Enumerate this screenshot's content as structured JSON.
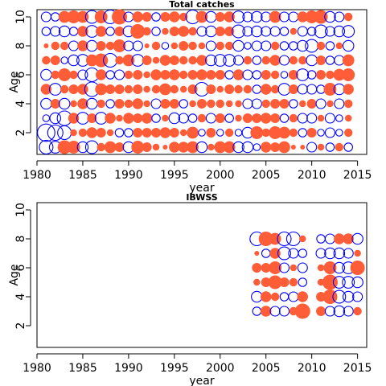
{
  "chart_data": [
    {
      "type": "scatter",
      "subtype": "bubble residual plot",
      "title": "Total catches",
      "xlabel": "year",
      "ylabel": "Age",
      "xlim": [
        1980,
        2016
      ],
      "ylim": [
        0.5,
        10.5
      ],
      "xticks": [
        1980,
        1985,
        1990,
        1995,
        2000,
        2005,
        2010,
        2015
      ],
      "yticks": [
        2,
        4,
        6,
        8,
        10
      ],
      "colors": {
        "positive": "#ff5c38",
        "negative": "#0000ff"
      },
      "year_start": 1981,
      "year_end": 2014,
      "age_start": 1,
      "age_end": 10,
      "residuals": [
        [
          -0.8,
          -0.6,
          0.8,
          0.7,
          -0.5,
          -0.7,
          0.3,
          0.6,
          0.4,
          -0.5,
          0.7,
          0.4,
          0.2,
          0.1,
          0.5,
          0.5,
          0.6,
          -0.5,
          0.2,
          0.6,
          0.6,
          -0.5,
          -0.5,
          -0.2,
          0.5,
          0.4,
          0.6,
          0.1,
          0.1,
          -0.4,
          0.2,
          -0.3,
          0.3,
          -0.3
        ],
        [
          -1.3,
          -1.0,
          -0.8,
          0.2,
          0.3,
          0.5,
          0.4,
          0.2,
          -0.3,
          -0.3,
          0.4,
          0.4,
          0.4,
          0.5,
          0.4,
          0.2,
          0.6,
          -0.2,
          0.4,
          -0.2,
          0.3,
          -0.2,
          -0.5,
          0.7,
          0.3,
          0.7,
          0.6,
          0.3,
          -0.3,
          0.4,
          -0.2,
          -0.4,
          -0.2,
          0.3
        ],
        [
          -0.2,
          -0.5,
          -0.9,
          0.5,
          -0.6,
          0.4,
          -0.6,
          0.5,
          0.2,
          0.5,
          0.4,
          0.5,
          -0.3,
          0.2,
          -0.5,
          -0.4,
          -0.3,
          0.3,
          -0.4,
          0.4,
          -0.3,
          0.2,
          0.4,
          0.4,
          0.5,
          0.4,
          -0.3,
          0.3,
          -0.4,
          -0.4,
          0.2,
          -0.4,
          -0.2,
          0.2
        ],
        [
          -0.5,
          0.4,
          -0.5,
          0.2,
          0.5,
          -0.5,
          0.3,
          -0.3,
          0.4,
          0.3,
          0.5,
          0.2,
          -0.4,
          0.4,
          0.4,
          -0.3,
          0.2,
          0.4,
          0.3,
          0.3,
          0.2,
          0.2,
          -0.4,
          -0.4,
          0.3,
          0.4,
          0.4,
          -0.3,
          0.2,
          0.4,
          -0.4,
          0.2,
          -0.4,
          0.3
        ],
        [
          0.5,
          -0.6,
          0.3,
          0.4,
          0.5,
          -0.9,
          0.6,
          0.4,
          0.4,
          0.3,
          0.4,
          0.2,
          0.3,
          0.6,
          0.3,
          0.2,
          0.4,
          -0.8,
          0.4,
          0.2,
          0.4,
          0.3,
          0.3,
          -0.3,
          0.5,
          0.3,
          -0.6,
          0.4,
          -0.4,
          -0.4,
          -0.3,
          0.7,
          -0.5,
          0.5
        ],
        [
          -0.5,
          0.3,
          0.7,
          0.3,
          -0.4,
          -0.8,
          0.5,
          -0.3,
          -0.4,
          0.3,
          0.4,
          0.2,
          0.5,
          0.4,
          0.5,
          0.3,
          0.4,
          0.5,
          0.4,
          0.4,
          -0.3,
          0.5,
          -0.4,
          -0.3,
          0.4,
          0.3,
          -0.2,
          0.4,
          -0.6,
          -0.3,
          0.4,
          0.3,
          0.6,
          0.7
        ],
        [
          0.3,
          0.4,
          -0.2,
          -0.5,
          -0.6,
          0.6,
          0.8,
          -0.8,
          0.3,
          0.6,
          -0.6,
          0.4,
          0.2,
          0.5,
          0.4,
          0.3,
          0.3,
          0.5,
          -0.5,
          -0.6,
          -0.6,
          -0.4,
          0.3,
          -0.3,
          0.3,
          0.5,
          -0.4,
          0.3,
          0.3,
          -0.5,
          0.4,
          -0.3,
          -0.4,
          0.6
        ],
        [
          0.1,
          0.3,
          0.3,
          -0.4,
          0.5,
          -0.5,
          0.4,
          0.3,
          0.7,
          -0.4,
          -0.4,
          0.1,
          0.3,
          -0.2,
          0.2,
          0.4,
          0.3,
          0.2,
          -0.4,
          0.3,
          0.3,
          -0.5,
          -0.2,
          -0.4,
          -0.4,
          0.3,
          -0.3,
          -0.3,
          -0.5,
          -0.7,
          0.3,
          -0.3,
          0.2,
          -0.5
        ],
        [
          -0.3,
          -0.4,
          -0.5,
          -0.3,
          0.5,
          -0.6,
          0.5,
          -0.3,
          0.4,
          -0.5,
          0.9,
          0.3,
          -0.3,
          0.2,
          0.4,
          0.5,
          0.3,
          -0.4,
          -0.5,
          0.4,
          0.4,
          -0.7,
          -0.4,
          -0.5,
          -0.4,
          -0.4,
          -0.3,
          0.2,
          -0.4,
          -0.3,
          -0.7,
          -0.4,
          -0.5,
          -0.6
        ],
        [
          -0.4,
          -0.3,
          0.6,
          0.7,
          0.6,
          -0.7,
          0.7,
          -0.8,
          1.0,
          -0.4,
          0.5,
          0.4,
          -0.3,
          0.4,
          0.5,
          0.3,
          -0.8,
          0.6,
          -0.5,
          0.4,
          0.5,
          -0.6,
          -0.4,
          -0.5,
          -0.4,
          0.6,
          -0.4,
          -0.4,
          0.5,
          0.7,
          0.8,
          -0.5,
          -0.4,
          0.3
        ]
      ]
    },
    {
      "type": "scatter",
      "subtype": "bubble residual plot",
      "title": "IBWSS",
      "xlabel": "year",
      "ylabel": "Age",
      "xlim": [
        1980,
        2016
      ],
      "ylim": [
        0.5,
        10.5
      ],
      "xticks": [
        1980,
        1985,
        1990,
        1995,
        2000,
        2005,
        2010,
        2015
      ],
      "yticks": [
        2,
        4,
        6,
        8,
        10
      ],
      "colors": {
        "positive": "#ff5c38",
        "negative": "#0000ff"
      },
      "years": [
        2004,
        2005,
        2006,
        2007,
        2008,
        2009,
        2011,
        2012,
        2013,
        2014,
        2015
      ],
      "ages": [
        3,
        4,
        5,
        6,
        7,
        8
      ],
      "residuals": [
        [
          -0.3,
          0.5,
          -0.4,
          -0.4,
          0.3,
          1.0,
          0.4,
          -0.4,
          -0.5,
          -0.4,
          0.3
        ],
        [
          -0.5,
          0.5,
          0.3,
          -0.3,
          -0.4,
          0.5,
          0.4,
          0.9,
          -0.7,
          -0.5,
          -0.4
        ],
        [
          0.2,
          0.4,
          0.8,
          0.4,
          0.3,
          -0.3,
          0.2,
          1.0,
          -0.6,
          -0.6,
          -0.5
        ],
        [
          0.4,
          0.4,
          0.7,
          -0.4,
          0.2,
          -0.4,
          0.2,
          0.7,
          -0.5,
          -0.6,
          0.9
        ],
        [
          0.1,
          -0.3,
          0.5,
          -0.7,
          -0.4,
          -0.3,
          -0.4,
          -0.5,
          -0.5,
          -0.4,
          0.2
        ],
        [
          -0.8,
          0.9,
          0.6,
          -0.8,
          -0.8,
          0.2,
          -0.3,
          -0.4,
          0.5,
          0.5,
          -0.5
        ]
      ]
    }
  ]
}
